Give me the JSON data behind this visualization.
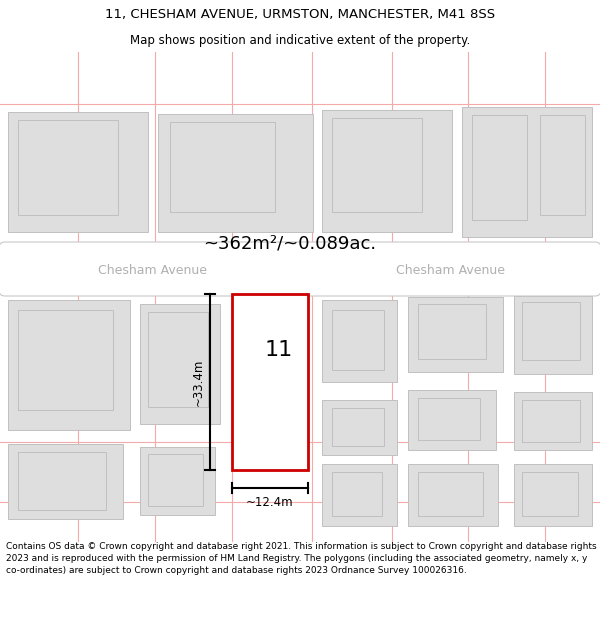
{
  "title_line1": "11, CHESHAM AVENUE, URMSTON, MANCHESTER, M41 8SS",
  "title_line2": "Map shows position and indicative extent of the property.",
  "area_label": "~362m²/~0.089ac.",
  "street_name_left": "Chesham Avenue",
  "street_name_right": "Chesham Avenue",
  "property_number": "11",
  "dim_width": "~12.4m",
  "dim_height": "~33.4m",
  "footer_text": "Contains OS data © Crown copyright and database right 2021. This information is subject to Crown copyright and database rights 2023 and is reproduced with the permission of HM Land Registry. The polygons (including the associated geometry, namely x, y co-ordinates) are subject to Crown copyright and database rights 2023 Ordnance Survey 100026316.",
  "bg_map_color": "#f2f2f2",
  "bg_white": "#ffffff",
  "road_fill": "#ffffff",
  "road_stroke": "#c8c8c8",
  "building_fill": "#dedede",
  "building_stroke": "#c0c0c0",
  "grid_line_color": "#f5aaaa",
  "property_stroke": "#cc0000",
  "property_fill": "#ffffff",
  "title_fontsize": 9.5,
  "subtitle_fontsize": 8.5,
  "area_fontsize": 13,
  "street_fontsize": 9,
  "prop_num_fontsize": 16,
  "dim_fontsize": 8.5,
  "footer_fontsize": 6.5
}
